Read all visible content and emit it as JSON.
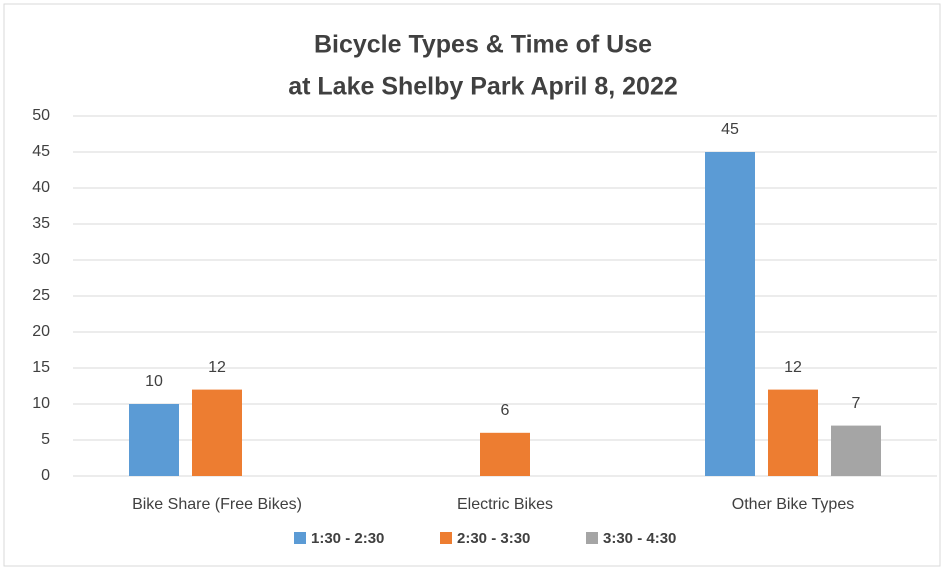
{
  "chart_data": {
    "type": "bar",
    "title": [
      "Bicycle Types & Time of Use",
      "at Lake Shelby Park April 8, 2022"
    ],
    "categories": [
      "Bike Share (Free Bikes)",
      "Electric Bikes",
      "Other Bike Types"
    ],
    "series": [
      {
        "name": "1:30 - 2:30",
        "color": "#5b9bd5",
        "values": [
          10,
          null,
          45
        ]
      },
      {
        "name": "2:30 - 3:30",
        "color": "#ed7d31",
        "values": [
          12,
          6,
          12
        ]
      },
      {
        "name": "3:30 - 4:30",
        "color": "#a5a5a5",
        "values": [
          null,
          null,
          7
        ]
      }
    ],
    "ylim": [
      0,
      50
    ],
    "yticks": [
      0,
      5,
      10,
      15,
      20,
      25,
      30,
      35,
      40,
      45,
      50
    ],
    "grid": true,
    "legend": "bottom"
  }
}
